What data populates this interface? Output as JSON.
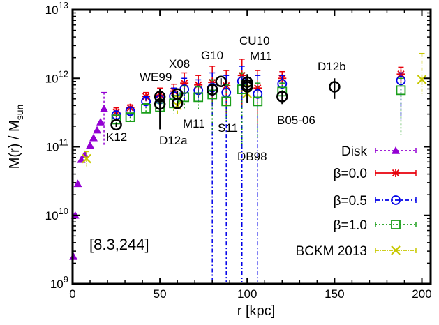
{
  "chart_data": {
    "type": "scatter",
    "ylabel_main": "M(r) / M",
    "ylabel_sub": "sun",
    "xlabel": "r [kpc]",
    "box_label": "[8.3,244]",
    "xlim": [
      0,
      205
    ],
    "ylim_log10": [
      9,
      13
    ],
    "y_scale": "log",
    "x_ticks": [
      0,
      50,
      100,
      150,
      200
    ],
    "y_ticks": [
      {
        "value": 1000000000.0,
        "base": "10",
        "exp": "9"
      },
      {
        "value": 10000000000.0,
        "base": "10",
        "exp": "10"
      },
      {
        "value": 100000000000.0,
        "base": "10",
        "exp": "11"
      },
      {
        "value": 1000000000000.0,
        "base": "10",
        "exp": "12"
      },
      {
        "value": 10000000000000.0,
        "base": "10",
        "exp": "13"
      }
    ],
    "legend_position": "bottom-right",
    "series": [
      {
        "name": "Disk",
        "marker": "triangle",
        "color": "#9400d3",
        "dash": "3,3",
        "points": [
          {
            "x": 0.5,
            "y": 2500000000.0
          },
          {
            "x": 1.5,
            "y": 10000000000.0
          },
          {
            "x": 3,
            "y": 29000000000.0
          },
          {
            "x": 5,
            "y": 65000000000.0
          },
          {
            "x": 7,
            "y": 77000000000.0
          },
          {
            "x": 10,
            "y": 105000000000.0
          },
          {
            "x": 12,
            "y": 135000000000.0
          },
          {
            "x": 14,
            "y": 175000000000.0
          },
          {
            "x": 16,
            "y": 230000000000.0
          },
          {
            "x": 18,
            "y": 360000000000.0,
            "ylo": 105000000000.0,
            "yhi": 620000000000.0
          }
        ]
      },
      {
        "name": "β=0.0",
        "marker": "star",
        "color": "#e8000b",
        "dash": "",
        "points": [
          {
            "x": 25,
            "y": 320000000000.0,
            "ylo": 270000000000.0,
            "yhi": 370000000000.0
          },
          {
            "x": 33,
            "y": 370000000000.0,
            "ylo": 330000000000.0,
            "yhi": 410000000000.0
          },
          {
            "x": 42,
            "y": 540000000000.0,
            "ylo": 460000000000.0,
            "yhi": 620000000000.0
          },
          {
            "x": 50,
            "y": 570000000000.0,
            "ylo": 460000000000.0,
            "yhi": 720000000000.0
          },
          {
            "x": 58,
            "y": 650000000000.0,
            "ylo": 500000000000.0,
            "yhi": 820000000000.0
          },
          {
            "x": 64,
            "y": 850000000000.0,
            "ylo": 600000000000.0,
            "yhi": 1200000000000.0
          },
          {
            "x": 72,
            "y": 800000000000.0,
            "ylo": 550000000000.0,
            "yhi": 1100000000000.0
          },
          {
            "x": 80,
            "y": 870000000000.0,
            "ylo": 400000000000.0,
            "yhi": 1500000000000.0
          },
          {
            "x": 88,
            "y": 780000000000.0,
            "ylo": 300000000000.0,
            "yhi": 1300000000000.0
          },
          {
            "x": 97,
            "y": 1100000000000.0,
            "ylo": 400000000000.0,
            "yhi": 1900000000000.0
          },
          {
            "x": 106,
            "y": 720000000000.0,
            "ylo": 200000000000.0,
            "yhi": 1300000000000.0
          },
          {
            "x": 120,
            "y": 1000000000000.0,
            "ylo": 800000000000.0,
            "yhi": 1250000000000.0
          },
          {
            "x": 188,
            "y": 1150000000000.0,
            "ylo": 850000000000.0,
            "yhi": 1450000000000.0
          }
        ]
      },
      {
        "name": "β=0.5",
        "marker": "circle",
        "color": "#0000e8",
        "dash": "6,3,2,3",
        "points": [
          {
            "x": 25,
            "y": 290000000000.0,
            "ylo": 250000000000.0,
            "yhi": 330000000000.0
          },
          {
            "x": 33,
            "y": 330000000000.0,
            "ylo": 290000000000.0,
            "yhi": 380000000000.0
          },
          {
            "x": 42,
            "y": 460000000000.0,
            "ylo": 380000000000.0,
            "yhi": 540000000000.0
          },
          {
            "x": 50,
            "y": 490000000000.0,
            "ylo": 380000000000.0,
            "yhi": 620000000000.0
          },
          {
            "x": 58,
            "y": 550000000000.0,
            "ylo": 400000000000.0,
            "yhi": 720000000000.0
          },
          {
            "x": 64,
            "y": 690000000000.0,
            "ylo": 480000000000.0,
            "yhi": 1000000000000.0
          },
          {
            "x": 72,
            "y": 670000000000.0,
            "ylo": 450000000000.0,
            "yhi": 950000000000.0
          },
          {
            "x": 80,
            "y": 730000000000.0,
            "ylo": 1000000000.0,
            "yhi": 1200000000000.0
          },
          {
            "x": 88,
            "y": 620000000000.0,
            "ylo": 1000000000.0,
            "yhi": 1100000000000.0
          },
          {
            "x": 97,
            "y": 910000000000.0,
            "ylo": 1000000000.0,
            "yhi": 1500000000000.0
          },
          {
            "x": 106,
            "y": 590000000000.0,
            "ylo": 1000000000.0,
            "yhi": 1100000000000.0
          },
          {
            "x": 120,
            "y": 830000000000.0,
            "ylo": 600000000000.0,
            "yhi": 1100000000000.0
          },
          {
            "x": 188,
            "y": 930000000000.0,
            "ylo": 250000000000.0,
            "yhi": 1200000000000.0
          }
        ]
      },
      {
        "name": "β=1.0",
        "marker": "square",
        "color": "#1a9e1a",
        "dash": "2,3",
        "points": [
          {
            "x": 25,
            "y": 250000000000.0,
            "ylo": 210000000000.0,
            "yhi": 290000000000.0
          },
          {
            "x": 33,
            "y": 270000000000.0,
            "ylo": 230000000000.0,
            "yhi": 310000000000.0
          },
          {
            "x": 42,
            "y": 360000000000.0,
            "ylo": 300000000000.0,
            "yhi": 430000000000.0
          },
          {
            "x": 50,
            "y": 380000000000.0,
            "ylo": 300000000000.0,
            "yhi": 480000000000.0
          },
          {
            "x": 58,
            "y": 430000000000.0,
            "ylo": 310000000000.0,
            "yhi": 560000000000.0
          },
          {
            "x": 64,
            "y": 530000000000.0,
            "ylo": 350000000000.0,
            "yhi": 770000000000.0
          },
          {
            "x": 72,
            "y": 530000000000.0,
            "ylo": 330000000000.0,
            "yhi": 750000000000.0
          },
          {
            "x": 80,
            "y": 580000000000.0,
            "ylo": 150000000000.0,
            "yhi": 950000000000.0
          },
          {
            "x": 88,
            "y": 460000000000.0,
            "ylo": 230000000000.0,
            "yhi": 800000000000.0
          },
          {
            "x": 97,
            "y": 690000000000.0,
            "ylo": 100000000000.0,
            "yhi": 1200000000000.0
          },
          {
            "x": 106,
            "y": 460000000000.0,
            "ylo": 140000000000.0,
            "yhi": 850000000000.0
          },
          {
            "x": 120,
            "y": 640000000000.0,
            "ylo": 450000000000.0,
            "yhi": 850000000000.0
          },
          {
            "x": 188,
            "y": 670000000000.0,
            "ylo": 150000000000.0,
            "yhi": 1000000000000.0
          }
        ]
      },
      {
        "name": "BCKM 2013",
        "marker": "x",
        "color": "#c8c800",
        "dash": "5,2,1,2",
        "points": [
          {
            "x": 8,
            "y": 67000000000.0,
            "ylo": 52000000000.0,
            "yhi": 85000000000.0
          },
          {
            "x": 60,
            "y": 400000000000.0,
            "ylo": 300000000000.0,
            "yhi": 540000000000.0
          },
          {
            "x": 100,
            "y": 600000000000.0,
            "ylo": 420000000000.0,
            "yhi": 780000000000.0
          },
          {
            "x": 200,
            "y": 960000000000.0,
            "ylo": 550000000000.0,
            "yhi": 2300000000000.0
          }
        ]
      }
    ],
    "observations": {
      "marker": "open-circle-black",
      "points": [
        {
          "label": "K12",
          "x": 25,
          "y": 210000000000.0,
          "ylo": 195000000000.0,
          "yhi": 225000000000.0
        },
        {
          "label": "WE99",
          "x": 50,
          "y": 540000000000.0,
          "ylo": 400000000000.0,
          "yhi": 700000000000.0
        },
        {
          "label": "D12a",
          "x": 50,
          "y": 420000000000.0,
          "ylo": 180000000000.0,
          "yhi": 650000000000.0
        },
        {
          "label": "X08",
          "x": 60,
          "y": 590000000000.0,
          "ylo": 520000000000.0,
          "yhi": 660000000000.0
        },
        {
          "label": "M11",
          "x": 60,
          "y": 430000000000.0,
          "ylo": 390000000000.0,
          "yhi": 470000000000.0
        },
        {
          "label": "G10",
          "x": 80,
          "y": 680000000000.0,
          "ylo": 550000000000.0,
          "yhi": 820000000000.0
        },
        {
          "label": "S11",
          "x": 85,
          "y": 900000000000.0,
          "ylo": 800000000000.0,
          "yhi": 1000000000000.0
        },
        {
          "label": "CU10",
          "x": 100,
          "y": 880000000000.0,
          "ylo": 800000000000.0,
          "yhi": 960000000000.0
        },
        {
          "label": "M11",
          "x": 100,
          "y": 800000000000.0,
          "ylo": 440000000000.0,
          "yhi": 1150000000000.0
        },
        {
          "label": "DB98",
          "x": 100,
          "y": 750000000000.0,
          "ylo": 450000000000.0,
          "yhi": 1050000000000.0
        },
        {
          "label": "B05-06",
          "x": 120,
          "y": 540000000000.0,
          "ylo": 420000000000.0,
          "yhi": 660000000000.0
        },
        {
          "label": "D12b",
          "x": 150,
          "y": 750000000000.0,
          "ylo": 500000000000.0,
          "yhi": 1000000000000.0
        }
      ]
    }
  }
}
